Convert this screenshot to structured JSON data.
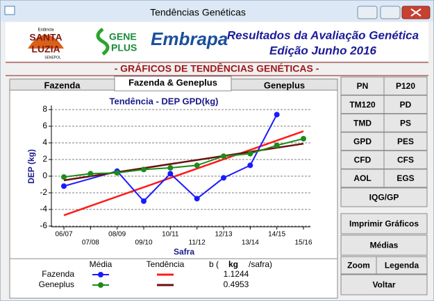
{
  "window": {
    "title": "Tendências Genéticas"
  },
  "header": {
    "logo_santa_luzia": [
      "Estância",
      "SANTA",
      "LUZIA",
      "SENEPOL"
    ],
    "logo_geneplus": [
      "GENE",
      "PLUS"
    ],
    "logo_embrapa": "Embrapa",
    "title": "Resultados da Avaliação Genética",
    "subtitle": "Edição Junho 2016"
  },
  "section_title": "- GRÁFICOS DE TENDÊNCIAS GENÉTICAS -",
  "tabs": [
    "Fazenda",
    "Fazenda & Geneplus",
    "Geneplus"
  ],
  "traits": [
    "PN",
    "P120",
    "TM120",
    "PD",
    "TMD",
    "PS",
    "GPD",
    "PES",
    "CFD",
    "CFS",
    "AOL",
    "EGS"
  ],
  "trait_wide": "IQG/GP",
  "actions": {
    "print": "Imprimir Gráficos",
    "means": "Médias",
    "zoom": "Zoom",
    "legend": "Legenda",
    "back": "Voltar"
  },
  "chart_data": {
    "type": "line",
    "title": "Tendência - DEP GPD(kg)",
    "x_label": "Safra",
    "y_label": "DEP (kg)",
    "categories": [
      "06/07",
      "07/08",
      "08/09",
      "09/10",
      "10/11",
      "11/12",
      "12/13",
      "13/14",
      "14/15",
      "15/16"
    ],
    "ylim": [
      -6,
      8
    ],
    "yticks": [
      -6,
      -4,
      -2,
      0,
      2,
      4,
      6,
      8
    ],
    "grid": true,
    "legend": {
      "mean": "Média",
      "trend": "Tendência",
      "b_open": "b (",
      "unit": "kg",
      "per": "/safra)"
    },
    "series": [
      {
        "name": "Fazenda",
        "color": "#1a1aff",
        "x": [
          "06/07",
          "08/09",
          "09/10",
          "10/11",
          "11/12",
          "12/13",
          "13/14",
          "14/15"
        ],
        "values": [
          -1.2,
          0.6,
          -3.0,
          0.3,
          -2.7,
          -0.2,
          1.3,
          7.4
        ],
        "trend": {
          "color": "#ff1a1a",
          "x": [
            "06/07",
            "15/16"
          ],
          "values": [
            -4.7,
            5.4
          ]
        },
        "slope": 1.1244
      },
      {
        "name": "Geneplus",
        "color": "#1a8c1a",
        "x": [
          "06/07",
          "07/08",
          "08/09",
          "09/10",
          "10/11",
          "11/12",
          "12/13",
          "13/14",
          "14/15",
          "15/16"
        ],
        "values": [
          -0.1,
          0.3,
          0.4,
          0.8,
          1.0,
          1.3,
          2.4,
          2.7,
          3.7,
          4.5
        ],
        "trend": {
          "color": "#6b0f0f",
          "x": [
            "06/07",
            "15/16"
          ],
          "values": [
            -0.5,
            3.9
          ]
        },
        "slope": 0.4953
      }
    ]
  }
}
